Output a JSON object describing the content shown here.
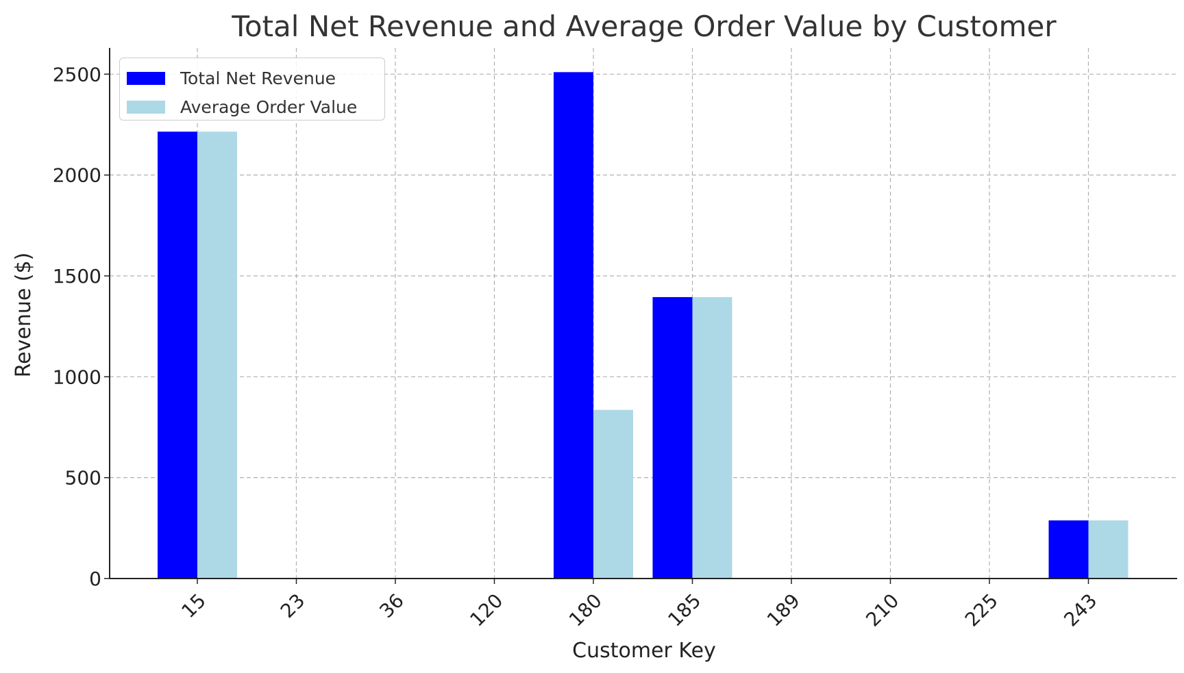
{
  "chart_data": {
    "type": "bar",
    "title": "Total Net Revenue and Average Order Value by Customer",
    "xlabel": "Customer Key",
    "ylabel": "Revenue ($)",
    "categories": [
      "15",
      "23",
      "36",
      "120",
      "180",
      "185",
      "189",
      "210",
      "225",
      "243"
    ],
    "series": [
      {
        "name": "Total Net Revenue",
        "color": "#0000ff",
        "values": [
          2215,
          0,
          0,
          0,
          2510,
          1395,
          0,
          0,
          0,
          288
        ]
      },
      {
        "name": "Average Order Value",
        "color": "#add8e6",
        "values": [
          2215,
          0,
          0,
          0,
          836,
          1395,
          0,
          0,
          0,
          288
        ]
      }
    ],
    "ylim": [
      0,
      2630
    ],
    "yticks": [
      0,
      500,
      1000,
      1500,
      2000,
      2500
    ],
    "grid": true,
    "legend_position": "top-left"
  }
}
